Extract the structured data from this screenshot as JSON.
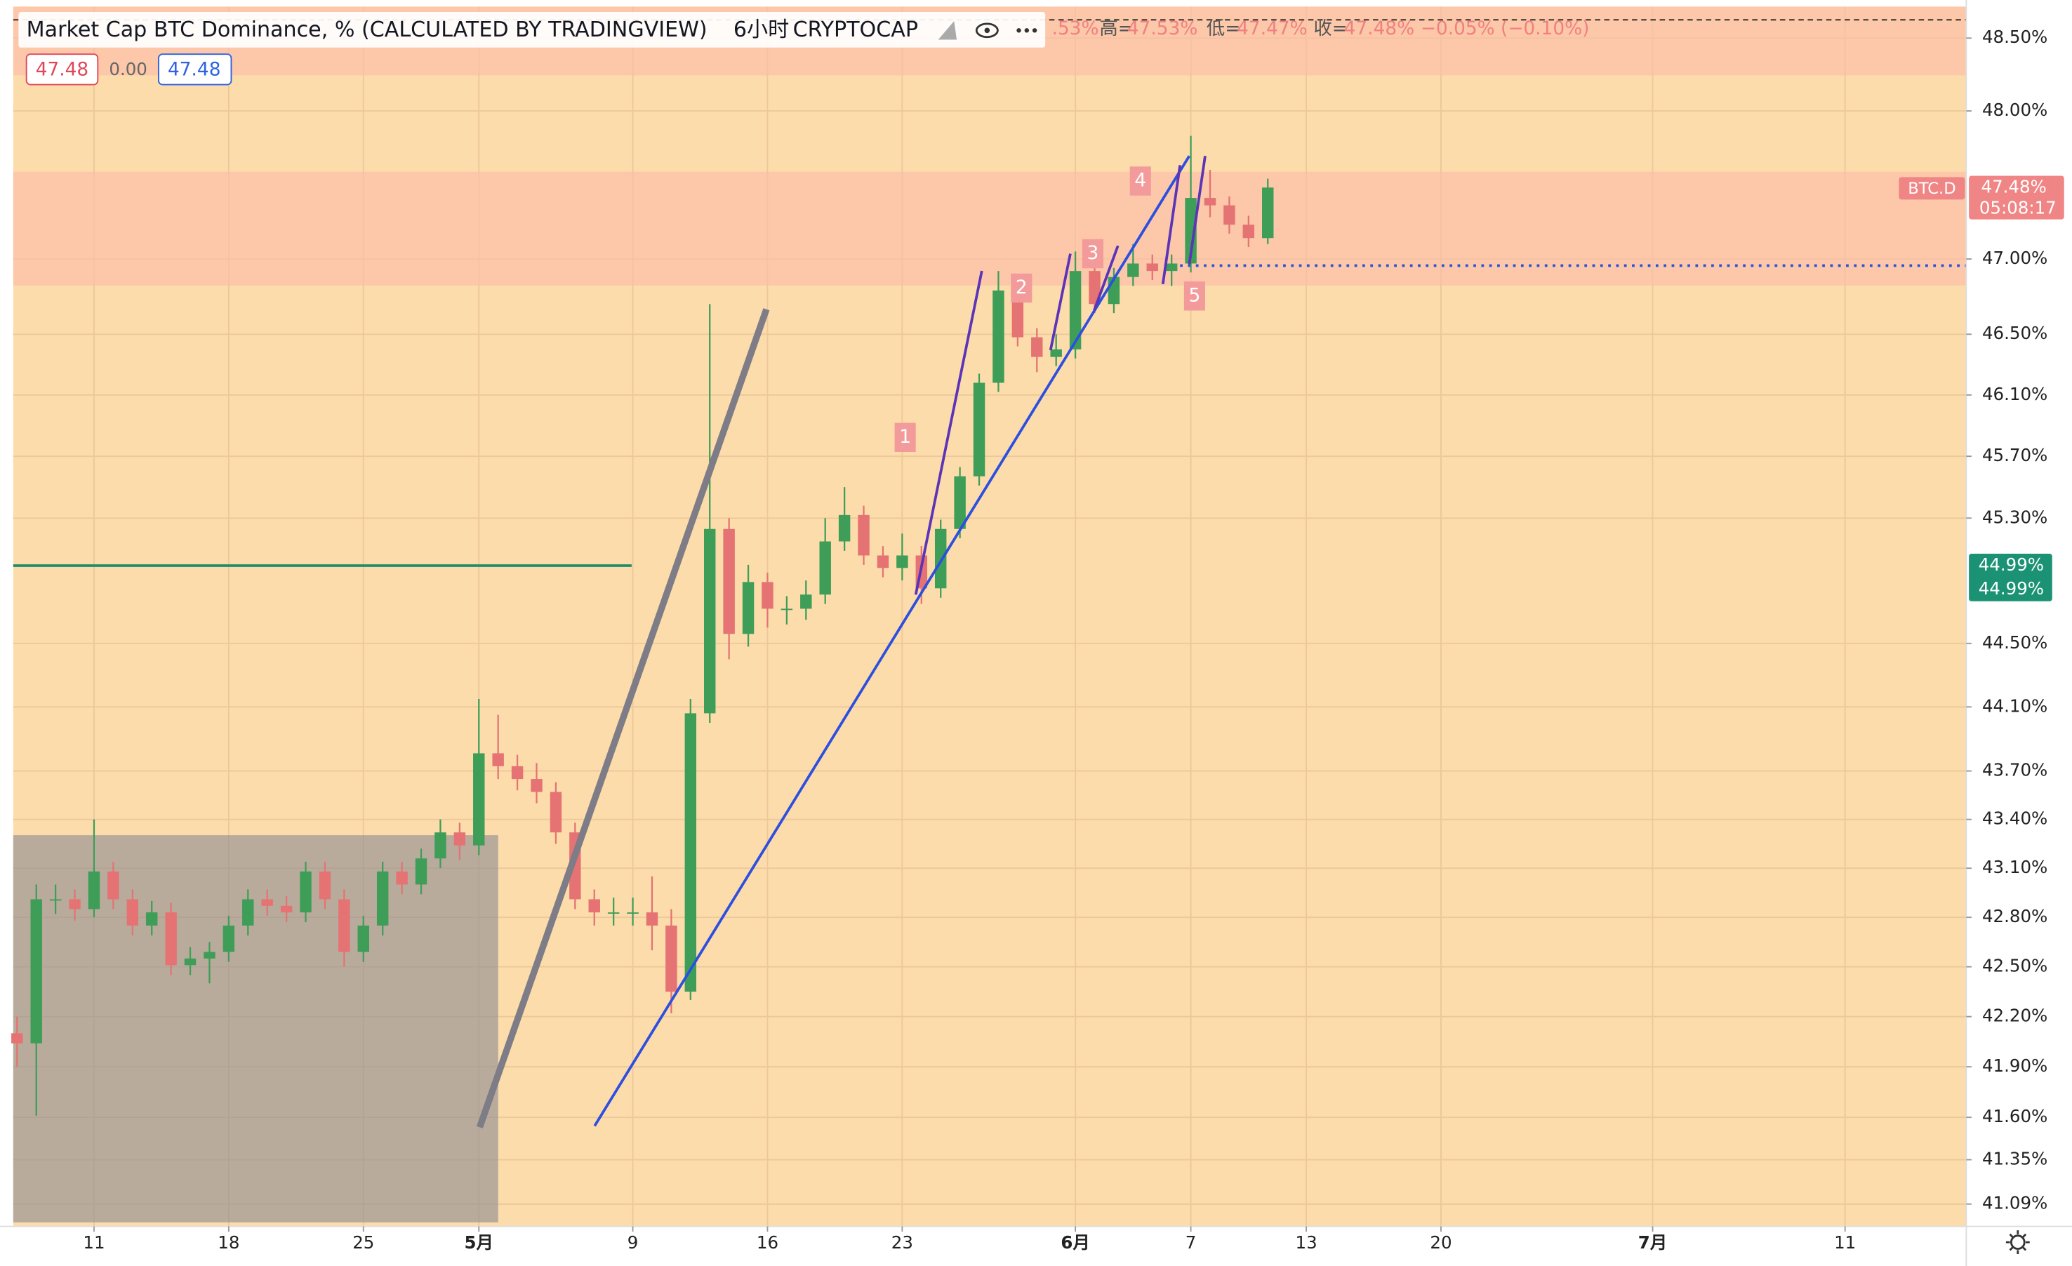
{
  "chart_data": {
    "type": "candlestick",
    "title": "Market Cap BTC Dominance, % (CALCULATED BY TRADINGVIEW)",
    "interval": "6小时",
    "exchange": "CRYPTOCAP",
    "ohlc_legend": [
      ".53%",
      "高=",
      "47.53%",
      "低=",
      "47.47%",
      "收=",
      "47.48%",
      "−0.05% (−0.10%)"
    ],
    "header_badges": [
      "47.48",
      "0.00",
      "47.48"
    ],
    "last_price": {
      "symbol": "BTC.D",
      "price": "47.48%",
      "countdown": "05:08:17"
    },
    "level_label": "44.99%",
    "wave_labels": [
      "1",
      "2",
      "3",
      "4",
      "5"
    ],
    "log_scale": true,
    "grid": true,
    "up_color": "#3e9e58",
    "down_color": "#e57373",
    "xlim": [
      6.8,
      108.3
    ],
    "xticks": [
      11,
      18,
      25,
      {
        "value": 31,
        "label": "5月"
      },
      {
        "value": 39,
        "label": "9"
      },
      {
        "value": 46,
        "label": "16"
      },
      {
        "value": 53,
        "label": "23"
      },
      {
        "value": 62,
        "label": "6月"
      },
      {
        "value": 68,
        "label": "7"
      },
      {
        "value": 74,
        "label": "13"
      },
      {
        "value": 81,
        "label": "20"
      },
      {
        "value": 92,
        "label": "7月"
      },
      {
        "value": 102,
        "label": "11"
      }
    ],
    "ylim": [
      40.96,
      48.69
    ],
    "yticks": [
      {
        "value": 41.09,
        "label": "41.09%"
      },
      {
        "value": 41.35,
        "label": "41.35%"
      },
      {
        "value": 41.6,
        "label": "41.60%"
      },
      {
        "value": 41.9,
        "label": "41.90%"
      },
      {
        "value": 42.2,
        "label": "42.20%"
      },
      {
        "value": 42.5,
        "label": "42.50%"
      },
      {
        "value": 42.8,
        "label": "42.80%"
      },
      {
        "value": 43.1,
        "label": "43.10%"
      },
      {
        "value": 43.4,
        "label": "43.40%"
      },
      {
        "value": 43.7,
        "label": "43.70%"
      },
      {
        "value": 44.1,
        "label": "44.10%"
      },
      {
        "value": 44.5,
        "label": "44.50%"
      },
      {
        "value": 45.3,
        "label": "45.30%"
      },
      {
        "value": 45.7,
        "label": "45.70%"
      },
      {
        "value": 46.1,
        "label": "46.10%"
      },
      {
        "value": 46.5,
        "label": "46.50%"
      },
      {
        "value": 47,
        "label": "47.00%"
      },
      {
        "value": 48,
        "label": "48.00%"
      },
      {
        "value": 48.5,
        "label": "48.50%"
      }
    ],
    "x": [
      7,
      8,
      9,
      10,
      11,
      12,
      13,
      14,
      15,
      16,
      17,
      18,
      19,
      20,
      21,
      22,
      23,
      24,
      25,
      26,
      27,
      28,
      29,
      30,
      31,
      32,
      33,
      34,
      35,
      36,
      37,
      38,
      39,
      40,
      41,
      42,
      43,
      44,
      45,
      46,
      47,
      48,
      49,
      50,
      51,
      52,
      53,
      54,
      55,
      56,
      57,
      58,
      59,
      60,
      61,
      62,
      63,
      64,
      65,
      66,
      67,
      68,
      69,
      70,
      71,
      72
    ],
    "open": [
      42.1,
      42.04,
      42.91,
      42.91,
      42.85,
      43.08,
      42.91,
      42.75,
      42.83,
      42.51,
      42.55,
      42.59,
      42.75,
      42.91,
      42.87,
      42.83,
      43.08,
      42.91,
      42.59,
      42.75,
      43.08,
      43.0,
      43.16,
      43.32,
      43.24,
      43.81,
      43.73,
      43.65,
      43.57,
      43.32,
      42.91,
      42.83,
      42.83,
      42.83,
      42.75,
      42.35,
      44.06,
      45.23,
      44.56,
      44.89,
      44.72,
      44.72,
      44.81,
      45.15,
      45.32,
      45.06,
      44.98,
      45.06,
      44.85,
      45.23,
      45.57,
      46.18,
      46.79,
      46.48,
      46.35,
      46.4,
      46.92,
      46.7,
      46.88,
      46.97,
      46.92,
      46.97,
      47.41,
      47.36,
      47.23,
      47.14
    ],
    "high": [
      42.2,
      43.0,
      43.0,
      42.97,
      43.4,
      43.14,
      42.97,
      42.9,
      42.89,
      42.62,
      42.65,
      42.81,
      42.97,
      42.97,
      42.93,
      43.14,
      43.14,
      42.97,
      42.81,
      43.14,
      43.14,
      43.22,
      43.4,
      43.38,
      44.15,
      44.05,
      43.8,
      43.75,
      43.63,
      43.38,
      42.97,
      42.92,
      42.92,
      43.05,
      42.85,
      44.15,
      46.7,
      45.3,
      45.0,
      44.95,
      44.8,
      44.9,
      45.3,
      45.5,
      45.38,
      45.12,
      45.2,
      45.12,
      45.29,
      45.63,
      46.24,
      46.92,
      46.85,
      46.54,
      46.5,
      47.05,
      46.98,
      46.94,
      47.1,
      47.03,
      47.03,
      47.83,
      47.6,
      47.42,
      47.29,
      47.54
    ],
    "low": [
      41.9,
      41.61,
      42.82,
      42.78,
      42.8,
      42.85,
      42.69,
      42.69,
      42.45,
      42.45,
      42.4,
      42.53,
      42.69,
      42.81,
      42.77,
      42.77,
      42.85,
      42.5,
      42.53,
      42.69,
      42.94,
      42.94,
      43.1,
      43.15,
      43.18,
      43.65,
      43.58,
      43.5,
      43.25,
      42.85,
      42.75,
      42.75,
      42.75,
      42.6,
      42.22,
      42.3,
      44.0,
      44.4,
      44.48,
      44.6,
      44.62,
      44.65,
      44.75,
      45.09,
      45.0,
      44.92,
      44.9,
      44.75,
      44.79,
      45.17,
      45.51,
      46.12,
      46.42,
      46.25,
      46.29,
      46.34,
      46.64,
      46.64,
      46.82,
      46.86,
      46.82,
      46.91,
      47.28,
      47.17,
      47.08,
      47.1
    ],
    "close": [
      42.04,
      42.91,
      42.91,
      42.85,
      43.08,
      42.91,
      42.75,
      42.83,
      42.51,
      42.55,
      42.59,
      42.75,
      42.91,
      42.87,
      42.83,
      43.08,
      42.91,
      42.59,
      42.75,
      43.08,
      43.0,
      43.16,
      43.32,
      43.24,
      43.81,
      43.73,
      43.65,
      43.57,
      43.32,
      42.91,
      42.83,
      42.83,
      42.83,
      42.75,
      42.35,
      44.06,
      45.23,
      44.56,
      44.89,
      44.72,
      44.72,
      44.81,
      45.15,
      45.32,
      45.06,
      44.98,
      45.06,
      44.85,
      45.23,
      45.57,
      46.18,
      46.79,
      46.48,
      46.35,
      46.4,
      46.92,
      46.7,
      46.88,
      46.97,
      46.92,
      46.97,
      47.41,
      47.36,
      47.23,
      47.14,
      47.48
    ]
  }
}
